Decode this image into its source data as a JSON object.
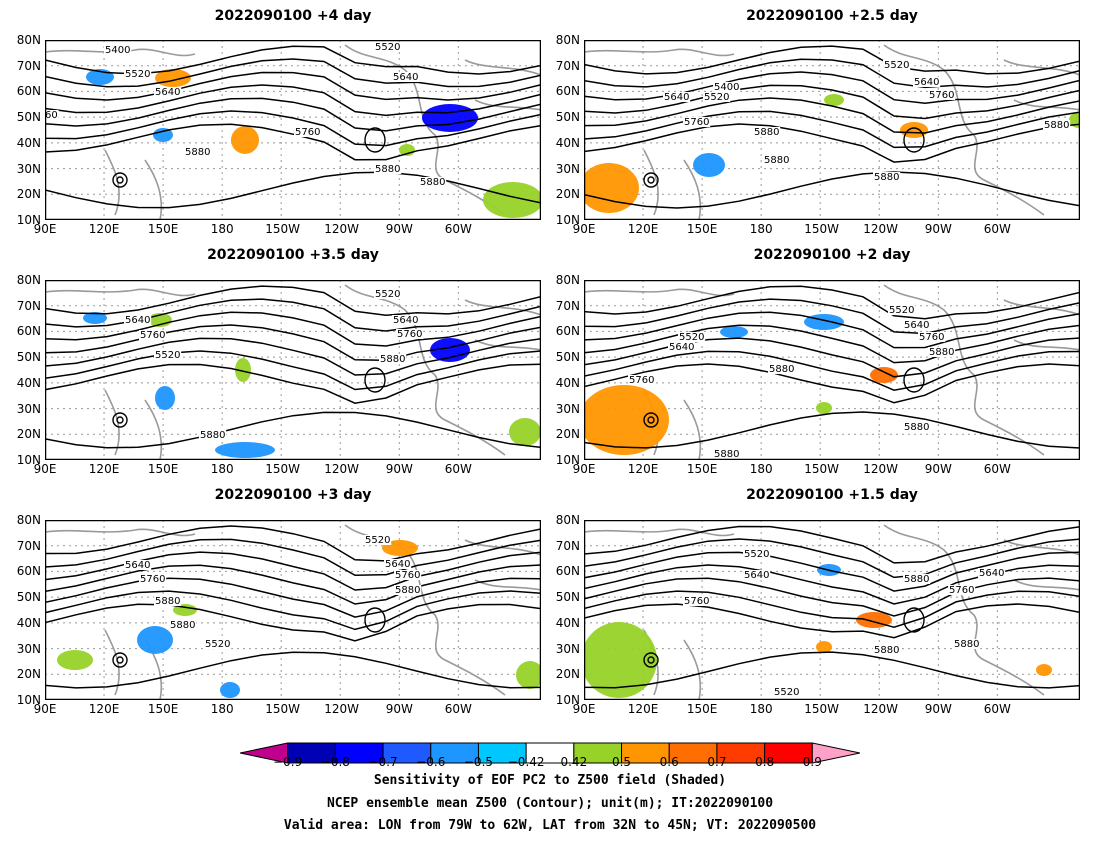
{
  "panels": [
    {
      "title": "2022090100 +4 day",
      "contours": [
        "5400",
        "5520",
        "5640",
        "5760",
        "5880",
        "5880",
        "5880",
        "5520",
        "5640",
        "60"
      ]
    },
    {
      "title": "2022090100 +2.5 day",
      "contours": [
        "5400",
        "5520",
        "5640",
        "5760",
        "5880",
        "5880",
        "5880",
        "5520",
        "5640",
        "5760",
        "5880"
      ]
    },
    {
      "title": "2022090100 +3.5 day",
      "contours": [
        "5520",
        "5640",
        "5760",
        "5520",
        "5640",
        "5760",
        "5880",
        "5880"
      ]
    },
    {
      "title": "2022090100 +2 day",
      "contours": [
        "5520",
        "5640",
        "5760",
        "5880",
        "5880",
        "5520",
        "5640",
        "5760",
        "5880",
        "5880"
      ]
    },
    {
      "title": "2022090100 +3 day",
      "contours": [
        "5520",
        "5640",
        "5760",
        "5880",
        "5880",
        "5520",
        "5640",
        "5760",
        "5880"
      ]
    },
    {
      "title": "2022090100 +1.5 day",
      "contours": [
        "5520",
        "5640",
        "5760",
        "5880",
        "5880",
        "5880",
        "5760",
        "5640",
        "5520"
      ]
    }
  ],
  "lat_ticks": [
    "80N",
    "70N",
    "60N",
    "50N",
    "40N",
    "30N",
    "20N",
    "10N"
  ],
  "lon_ticks": [
    "90E",
    "120E",
    "150E",
    "180",
    "150W",
    "120W",
    "90W",
    "60W"
  ],
  "colorbar": {
    "labels": [
      "−0.9",
      "−0.8",
      "−0.7",
      "−0.6",
      "−0.5",
      "−0.42",
      "0.42",
      "0.5",
      "0.6",
      "0.7",
      "0.8",
      "0.9"
    ],
    "colors": [
      "#c0008c",
      "#0000b4",
      "#0000ff",
      "#1e5aff",
      "#1e96ff",
      "#00c8ff",
      "#ffffff",
      "#96d228",
      "#ff9600",
      "#ff6e00",
      "#ff3c00",
      "#ff0000",
      "#ffa0c8"
    ]
  },
  "caption": {
    "line1": "Sensitivity of EOF PC2 to Z500 field (Shaded)",
    "line2": "NCEP ensemble mean Z500 (Contour); unit(m); IT:2022090100",
    "line3": "Valid area: LON from 79W to 62W, LAT from 32N to 45N; VT: 2022090500"
  }
}
